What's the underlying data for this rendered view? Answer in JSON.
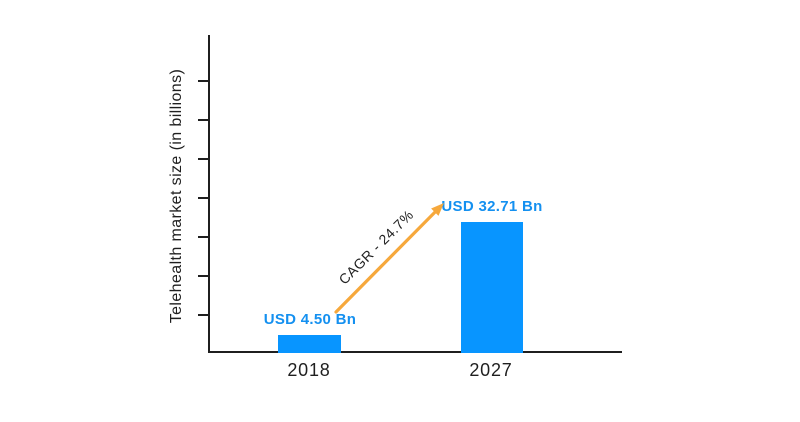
{
  "page": {
    "background": "#ffffff"
  },
  "chart_data": {
    "type": "bar",
    "title": "",
    "xlabel": "",
    "ylabel": "Telehealth market size (in billions)",
    "categories": [
      "2018",
      "2027"
    ],
    "values": [
      4.5,
      32.71
    ],
    "bar_labels": [
      "USD 4.50 Bn",
      "USD 32.71 Bn"
    ],
    "annotation": "CAGR - 24.7%",
    "grid": false,
    "legend_position": "none",
    "y_axis_tick_count": 7,
    "y_axis_numeric_labels_shown": false,
    "colors": {
      "bar": "#0895ff",
      "value_label_text": "#1490f0",
      "arrow": "#f6a83c",
      "axis": "#1f1f1f"
    }
  }
}
